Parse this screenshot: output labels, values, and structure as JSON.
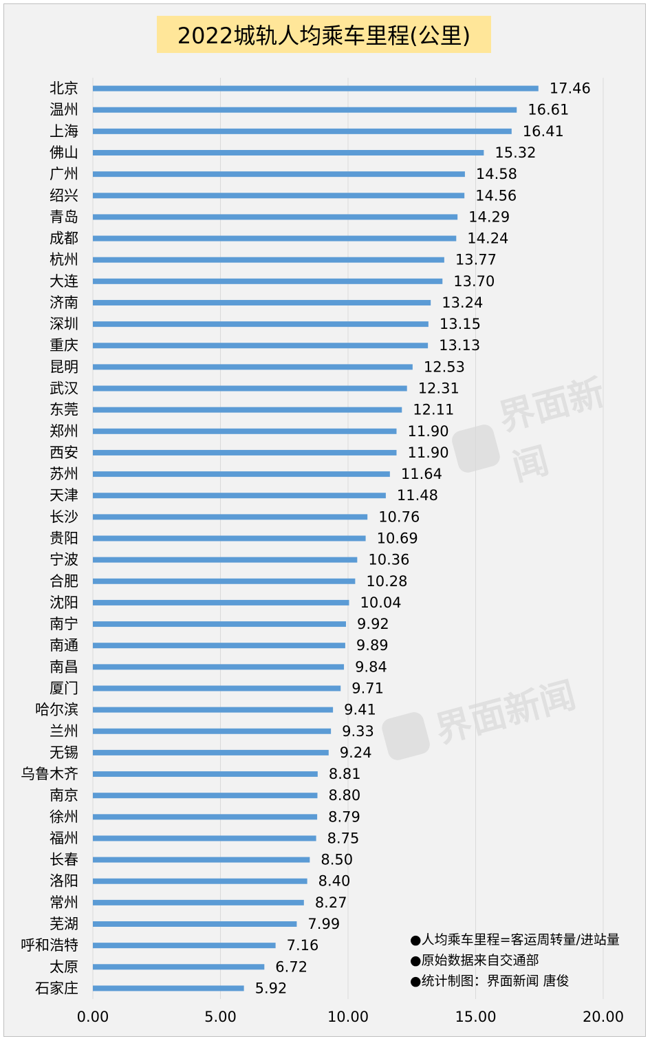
{
  "chart_data": {
    "type": "bar",
    "orientation": "horizontal",
    "title": "2022城轨人均乘车里程(公里)",
    "categories": [
      "北京",
      "温州",
      "上海",
      "佛山",
      "广州",
      "绍兴",
      "青岛",
      "成都",
      "杭州",
      "大连",
      "济南",
      "深圳",
      "重庆",
      "昆明",
      "武汉",
      "东莞",
      "郑州",
      "西安",
      "苏州",
      "天津",
      "长沙",
      "贵阳",
      "宁波",
      "合肥",
      "沈阳",
      "南宁",
      "南通",
      "南昌",
      "厦门",
      "哈尔滨",
      "兰州",
      "无锡",
      "乌鲁木齐",
      "南京",
      "徐州",
      "福州",
      "长春",
      "洛阳",
      "常州",
      "芜湖",
      "呼和浩特",
      "太原",
      "石家庄"
    ],
    "values": [
      17.46,
      16.61,
      16.41,
      15.32,
      14.58,
      14.56,
      14.29,
      14.24,
      13.77,
      13.7,
      13.24,
      13.15,
      13.13,
      12.53,
      12.31,
      12.11,
      11.9,
      11.9,
      11.64,
      11.48,
      10.76,
      10.69,
      10.36,
      10.28,
      10.04,
      9.92,
      9.89,
      9.84,
      9.71,
      9.41,
      9.33,
      9.24,
      8.81,
      8.8,
      8.79,
      8.75,
      8.5,
      8.4,
      8.27,
      7.99,
      7.16,
      6.72,
      5.92
    ],
    "value_labels": [
      "17.46",
      "16.61",
      "16.41",
      "15.32",
      "14.58",
      "14.56",
      "14.29",
      "14.24",
      "13.77",
      "13.70",
      "13.24",
      "13.15",
      "13.13",
      "12.53",
      "12.31",
      "12.11",
      "11.90",
      "11.90",
      "11.64",
      "11.48",
      "10.76",
      "10.69",
      "10.36",
      "10.28",
      "10.04",
      "9.92",
      "9.89",
      "9.84",
      "9.71",
      "9.41",
      "9.33",
      "9.24",
      "8.81",
      "8.80",
      "8.79",
      "8.75",
      "8.50",
      "8.40",
      "8.27",
      "7.99",
      "7.16",
      "6.72",
      "5.92"
    ],
    "xlim": [
      0,
      20
    ],
    "xticks": [
      0,
      5,
      10,
      15,
      20
    ],
    "xtick_labels": [
      "0.00",
      "5.00",
      "10.00",
      "15.00",
      "20.00"
    ],
    "grid": "vertical",
    "bar_color": "#5b9bd5",
    "title_bg_color": "#ffe699",
    "notes": [
      "●人均乘车里程=客运周转量/进站量",
      "●原始数据来自交通部",
      "●统计制图：界面新闻 唐俊"
    ]
  },
  "watermark": {
    "text": "界面新闻"
  }
}
